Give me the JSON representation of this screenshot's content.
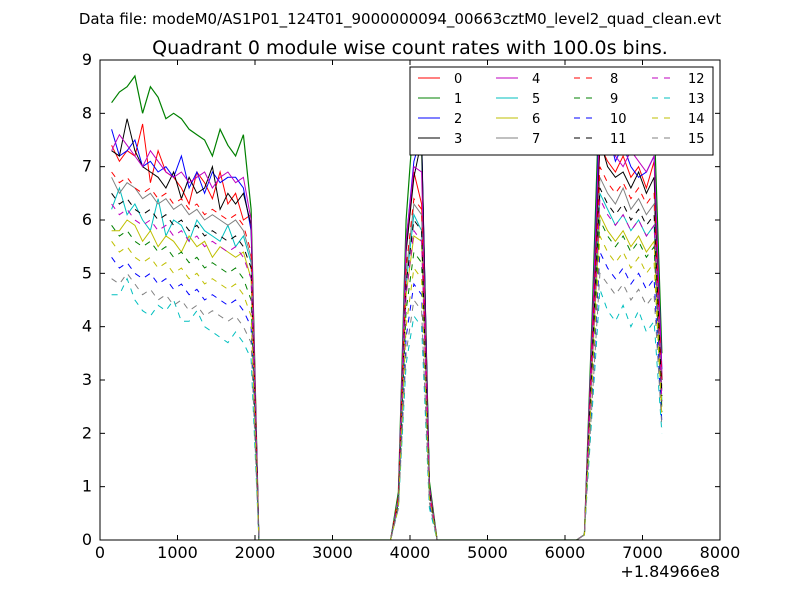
{
  "chart_data": {
    "type": "line",
    "suptitle": "Data file: modeM0/AS1P01_124T01_9000000094_00663cztM0_level2_quad_clean.evt",
    "title": "Quadrant 0 module wise count rates with 100.0s bins.",
    "xlabel": "",
    "ylabel": "",
    "x_offset_label": "+1.84966e8",
    "xlim": [
      0,
      8000
    ],
    "ylim": [
      0,
      9
    ],
    "x_ticks": [
      0,
      1000,
      2000,
      3000,
      4000,
      5000,
      6000,
      7000,
      8000
    ],
    "y_ticks": [
      0,
      1,
      2,
      3,
      4,
      5,
      6,
      7,
      8,
      9
    ],
    "x_tick_labels": [
      "0",
      "1000",
      "2000",
      "3000",
      "4000",
      "5000",
      "6000",
      "7000",
      "8000"
    ],
    "y_tick_labels": [
      "0",
      "1",
      "2",
      "3",
      "4",
      "5",
      "6",
      "7",
      "8",
      "9"
    ],
    "grid": false,
    "legend_position": "top-right",
    "legend_columns": 4,
    "x": [
      150,
      250,
      350,
      450,
      550,
      650,
      750,
      850,
      950,
      1050,
      1150,
      1250,
      1350,
      1450,
      1550,
      1650,
      1750,
      1850,
      1950,
      2050,
      2150,
      2250,
      2350,
      2450,
      2550,
      2650,
      2750,
      2850,
      2950,
      3050,
      3150,
      3250,
      3350,
      3450,
      3550,
      3650,
      3750,
      3850,
      3950,
      4050,
      4150,
      4250,
      4350,
      4450,
      4550,
      4650,
      4750,
      4850,
      4950,
      5050,
      5150,
      5250,
      5350,
      5450,
      5550,
      5650,
      5750,
      5850,
      5950,
      6050,
      6150,
      6250,
      6350,
      6450,
      6550,
      6650,
      6750,
      6850,
      6950,
      7050,
      7150,
      7250
    ],
    "series": [
      {
        "name": "0",
        "color": "#ff0000",
        "dash": "solid",
        "values": [
          7.4,
          7.1,
          7.3,
          7.2,
          7.8,
          6.7,
          7.3,
          6.9,
          6.8,
          6.6,
          6.3,
          6.9,
          6.7,
          6.4,
          6.9,
          6.3,
          6.5,
          6.0,
          6.1,
          0.0,
          0,
          0,
          0,
          0,
          0,
          0,
          0,
          0,
          0,
          0,
          0,
          0,
          0,
          0,
          0,
          0,
          0,
          0.8,
          5.5,
          6.9,
          6.3,
          1.0,
          0.0,
          0,
          0,
          0,
          0,
          0,
          0,
          0,
          0,
          0,
          0,
          0,
          0,
          0,
          0,
          0,
          0,
          0,
          0,
          0.1,
          3.8,
          7.4,
          7.1,
          6.9,
          7.2,
          6.8,
          7.0,
          6.6,
          7.1,
          3.0
        ]
      },
      {
        "name": "1",
        "color": "#008000",
        "dash": "solid",
        "values": [
          8.2,
          8.4,
          8.5,
          8.7,
          8.0,
          8.5,
          8.3,
          7.9,
          8.0,
          7.9,
          7.7,
          7.6,
          7.5,
          7.2,
          7.7,
          7.4,
          7.2,
          7.6,
          6.2,
          0.0,
          0,
          0,
          0,
          0,
          0,
          0,
          0,
          0,
          0,
          0,
          0,
          0,
          0,
          0,
          0,
          0,
          0,
          0.9,
          6.0,
          8.0,
          7.4,
          1.1,
          0.0,
          0,
          0,
          0,
          0,
          0,
          0,
          0,
          0,
          0,
          0,
          0,
          0,
          0,
          0,
          0,
          0,
          0,
          0,
          0.1,
          4.2,
          8.7,
          8.3,
          8.1,
          8.4,
          8.0,
          7.8,
          7.6,
          7.9,
          3.5
        ]
      },
      {
        "name": "2",
        "color": "#0000ff",
        "dash": "solid",
        "values": [
          7.7,
          7.2,
          7.3,
          7.5,
          7.0,
          7.1,
          6.9,
          7.0,
          6.8,
          7.2,
          6.6,
          6.9,
          6.5,
          6.9,
          6.7,
          6.8,
          6.8,
          6.6,
          5.8,
          0.0,
          0,
          0,
          0,
          0,
          0,
          0,
          0,
          0,
          0,
          0,
          0,
          0,
          0,
          0,
          0,
          0,
          0,
          0.8,
          5.6,
          7.1,
          7.6,
          1.0,
          0.0,
          0,
          0,
          0,
          0,
          0,
          0,
          0,
          0,
          0,
          0,
          0,
          0,
          0,
          0,
          0,
          0,
          0,
          0,
          0.1,
          3.9,
          8.2,
          7.7,
          7.1,
          7.4,
          7.0,
          6.8,
          6.9,
          7.2,
          3.2
        ]
      },
      {
        "name": "3",
        "color": "#000000",
        "dash": "solid",
        "values": [
          7.3,
          7.2,
          7.9,
          7.3,
          7.0,
          6.9,
          6.8,
          6.6,
          6.9,
          6.4,
          6.8,
          6.5,
          6.6,
          7.0,
          6.2,
          6.5,
          6.3,
          6.5,
          5.9,
          0.0,
          0,
          0,
          0,
          0,
          0,
          0,
          0,
          0,
          0,
          0,
          0,
          0,
          0,
          0,
          0,
          0,
          0,
          0.8,
          5.4,
          6.8,
          7.5,
          1.0,
          0.0,
          0,
          0,
          0,
          0,
          0,
          0,
          0,
          0,
          0,
          0,
          0,
          0,
          0,
          0,
          0,
          0,
          0,
          0,
          0.1,
          3.8,
          7.5,
          7.0,
          6.8,
          6.9,
          6.6,
          6.9,
          6.5,
          6.8,
          3.0
        ]
      },
      {
        "name": "4",
        "color": "#bf00bf",
        "dash": "solid",
        "values": [
          7.3,
          7.6,
          7.4,
          7.2,
          7.0,
          7.3,
          7.1,
          6.9,
          6.8,
          6.9,
          6.7,
          6.8,
          6.9,
          6.6,
          6.8,
          6.9,
          6.7,
          6.8,
          6.0,
          0.0,
          0,
          0,
          0,
          0,
          0,
          0,
          0,
          0,
          0,
          0,
          0,
          0,
          0,
          0,
          0,
          0,
          0,
          0.8,
          5.6,
          7.0,
          6.9,
          1.0,
          0.0,
          0,
          0,
          0,
          0,
          0,
          0,
          0,
          0,
          0,
          0,
          0,
          0,
          0,
          0,
          0,
          0,
          0,
          0,
          0.1,
          3.9,
          7.9,
          7.5,
          7.2,
          7.0,
          7.3,
          7.1,
          6.9,
          7.2,
          3.1
        ]
      },
      {
        "name": "5",
        "color": "#00bfbf",
        "dash": "solid",
        "values": [
          6.2,
          6.6,
          6.1,
          6.3,
          6.0,
          5.8,
          6.4,
          5.7,
          6.0,
          5.9,
          5.6,
          6.0,
          5.8,
          5.7,
          5.6,
          5.9,
          5.5,
          5.7,
          5.2,
          0.0,
          0,
          0,
          0,
          0,
          0,
          0,
          0,
          0,
          0,
          0,
          0,
          0,
          0,
          0,
          0,
          0,
          0,
          0.7,
          4.8,
          6.1,
          5.8,
          0.9,
          0.0,
          0,
          0,
          0,
          0,
          0,
          0,
          0,
          0,
          0,
          0,
          0,
          0,
          0,
          0,
          0,
          0,
          0,
          0,
          0.1,
          3.4,
          6.5,
          6.2,
          5.9,
          6.1,
          5.8,
          6.0,
          5.7,
          5.9,
          2.6
        ]
      },
      {
        "name": "6",
        "color": "#bfbf00",
        "dash": "solid",
        "values": [
          5.8,
          5.8,
          6.0,
          5.9,
          5.6,
          5.8,
          5.5,
          5.7,
          5.6,
          5.4,
          5.7,
          5.5,
          5.6,
          5.3,
          5.5,
          5.4,
          5.3,
          5.4,
          4.9,
          0.0,
          0,
          0,
          0,
          0,
          0,
          0,
          0,
          0,
          0,
          0,
          0,
          0,
          0,
          0,
          0,
          0,
          0,
          0.7,
          4.6,
          5.7,
          5.6,
          0.9,
          0.0,
          0,
          0,
          0,
          0,
          0,
          0,
          0,
          0,
          0,
          0,
          0,
          0,
          0,
          0,
          0,
          0,
          0,
          0,
          0.1,
          3.2,
          6.1,
          5.8,
          5.6,
          5.8,
          5.5,
          5.7,
          5.4,
          5.6,
          2.5
        ]
      },
      {
        "name": "7",
        "color": "#808080",
        "dash": "solid",
        "values": [
          6.8,
          6.5,
          6.7,
          6.6,
          6.4,
          6.5,
          6.3,
          6.4,
          6.2,
          6.3,
          6.1,
          6.2,
          6.0,
          6.1,
          6.0,
          5.9,
          6.0,
          5.8,
          5.3,
          0.0,
          0,
          0,
          0,
          0,
          0,
          0,
          0,
          0,
          0,
          0,
          0,
          0,
          0,
          0,
          0,
          0,
          0,
          0.8,
          5.0,
          6.3,
          6.1,
          0.9,
          0.0,
          0,
          0,
          0,
          0,
          0,
          0,
          0,
          0,
          0,
          0,
          0,
          0,
          0,
          0,
          0,
          0,
          0,
          0,
          0.1,
          3.5,
          6.8,
          6.5,
          6.3,
          6.6,
          6.2,
          6.4,
          6.1,
          6.3,
          2.8
        ]
      },
      {
        "name": "8",
        "color": "#ff0000",
        "dash": "dashed",
        "values": [
          6.9,
          6.7,
          6.8,
          6.6,
          6.5,
          6.6,
          6.4,
          6.5,
          6.3,
          6.4,
          6.2,
          6.3,
          6.1,
          6.2,
          6.1,
          6.0,
          6.1,
          5.9,
          5.4,
          0.0,
          0,
          0,
          0,
          0,
          0,
          0,
          0,
          0,
          0,
          0,
          0,
          0,
          0,
          0,
          0,
          0,
          0,
          0.8,
          5.1,
          6.4,
          6.2,
          0.9,
          0.0,
          0,
          0,
          0,
          0,
          0,
          0,
          0,
          0,
          0,
          0,
          0,
          0,
          0,
          0,
          0,
          0,
          0,
          0,
          0.1,
          3.6,
          7.0,
          6.7,
          6.5,
          6.7,
          6.4,
          6.6,
          6.3,
          6.5,
          2.9
        ]
      },
      {
        "name": "9",
        "color": "#008000",
        "dash": "dashed",
        "values": [
          5.9,
          5.7,
          5.8,
          5.6,
          5.5,
          5.6,
          5.4,
          5.5,
          5.3,
          5.4,
          5.2,
          5.3,
          5.1,
          5.2,
          5.1,
          5.0,
          5.1,
          4.9,
          4.5,
          0.0,
          0,
          0,
          0,
          0,
          0,
          0,
          0,
          0,
          0,
          0,
          0,
          0,
          0,
          0,
          0,
          0,
          0,
          0.7,
          4.3,
          5.4,
          5.2,
          0.8,
          0.0,
          0,
          0,
          0,
          0,
          0,
          0,
          0,
          0,
          0,
          0,
          0,
          0,
          0,
          0,
          0,
          0,
          0,
          0,
          0.1,
          3.0,
          6.0,
          5.7,
          5.5,
          5.7,
          5.4,
          5.6,
          5.3,
          5.5,
          2.4
        ]
      },
      {
        "name": "10",
        "color": "#0000ff",
        "dash": "dashed",
        "values": [
          5.3,
          5.1,
          5.2,
          5.0,
          4.9,
          5.0,
          4.8,
          4.9,
          4.7,
          4.8,
          4.6,
          4.7,
          4.5,
          4.6,
          4.5,
          4.4,
          4.5,
          4.3,
          4.0,
          0.0,
          0,
          0,
          0,
          0,
          0,
          0,
          0,
          0,
          0,
          0,
          0,
          0,
          0,
          0,
          0,
          0,
          0,
          0.6,
          3.8,
          4.8,
          4.6,
          0.7,
          0.0,
          0,
          0,
          0,
          0,
          0,
          0,
          0,
          0,
          0,
          0,
          0,
          0,
          0,
          0,
          0,
          0,
          0,
          0,
          0.1,
          2.7,
          5.4,
          5.1,
          4.9,
          5.1,
          4.8,
          5.0,
          4.7,
          4.9,
          2.2
        ]
      },
      {
        "name": "11",
        "color": "#000000",
        "dash": "dashed",
        "values": [
          6.5,
          6.3,
          6.4,
          6.2,
          6.1,
          6.2,
          6.0,
          6.1,
          5.9,
          6.0,
          5.8,
          5.9,
          5.7,
          5.8,
          5.7,
          5.6,
          5.7,
          5.5,
          5.1,
          0.0,
          0,
          0,
          0,
          0,
          0,
          0,
          0,
          0,
          0,
          0,
          0,
          0,
          0,
          0,
          0,
          0,
          0,
          0.7,
          4.8,
          6.0,
          5.8,
          0.9,
          0.0,
          0,
          0,
          0,
          0,
          0,
          0,
          0,
          0,
          0,
          0,
          0,
          0,
          0,
          0,
          0,
          0,
          0,
          0,
          0.1,
          3.4,
          6.6,
          6.3,
          6.1,
          6.3,
          6.0,
          6.2,
          5.9,
          6.1,
          2.7
        ]
      },
      {
        "name": "12",
        "color": "#bf00bf",
        "dash": "dashed",
        "values": [
          6.3,
          6.1,
          6.2,
          6.0,
          5.9,
          6.0,
          5.8,
          5.9,
          5.7,
          5.8,
          5.6,
          5.7,
          5.5,
          5.6,
          5.5,
          5.4,
          5.5,
          5.3,
          4.9,
          0.0,
          0,
          0,
          0,
          0,
          0,
          0,
          0,
          0,
          0,
          0,
          0,
          0,
          0,
          0,
          0,
          0,
          0,
          0.7,
          4.6,
          5.8,
          5.6,
          0.8,
          0.0,
          0,
          0,
          0,
          0,
          0,
          0,
          0,
          0,
          0,
          0,
          0,
          0,
          0,
          0,
          0,
          0,
          0,
          0,
          0.1,
          3.3,
          6.4,
          6.1,
          5.9,
          6.1,
          5.8,
          6.0,
          5.7,
          5.9,
          2.6
        ]
      },
      {
        "name": "13",
        "color": "#00bfbf",
        "dash": "dashed",
        "values": [
          4.6,
          4.6,
          4.9,
          4.5,
          4.3,
          4.2,
          4.4,
          4.3,
          4.5,
          4.1,
          4.1,
          4.3,
          4.0,
          3.9,
          3.8,
          3.7,
          3.9,
          3.7,
          3.4,
          0.0,
          0,
          0,
          0,
          0,
          0,
          0,
          0,
          0,
          0,
          0,
          0,
          0,
          0,
          0,
          0,
          0,
          0,
          0.6,
          3.3,
          4.2,
          4.0,
          0.6,
          0.0,
          0,
          0,
          0,
          0,
          0,
          0,
          0,
          0,
          0,
          0,
          0,
          0,
          0,
          0,
          0,
          0,
          0,
          0,
          0.1,
          2.4,
          4.7,
          4.3,
          4.1,
          4.4,
          4.0,
          4.3,
          3.9,
          4.1,
          2.0
        ]
      },
      {
        "name": "14",
        "color": "#bfbf00",
        "dash": "dashed",
        "values": [
          5.6,
          5.4,
          5.5,
          5.3,
          5.2,
          5.3,
          5.1,
          5.2,
          5.0,
          5.1,
          4.9,
          5.0,
          4.8,
          4.9,
          4.8,
          4.7,
          4.8,
          4.6,
          4.2,
          0.0,
          0,
          0,
          0,
          0,
          0,
          0,
          0,
          0,
          0,
          0,
          0,
          0,
          0,
          0,
          0,
          0,
          0,
          0.6,
          4.0,
          5.1,
          4.9,
          0.8,
          0.0,
          0,
          0,
          0,
          0,
          0,
          0,
          0,
          0,
          0,
          0,
          0,
          0,
          0,
          0,
          0,
          0,
          0,
          0,
          0.1,
          2.9,
          5.7,
          5.4,
          5.2,
          5.4,
          5.1,
          5.3,
          5.0,
          5.2,
          2.3
        ]
      },
      {
        "name": "15",
        "color": "#808080",
        "dash": "dashed",
        "values": [
          4.9,
          4.8,
          5.0,
          4.8,
          4.6,
          4.7,
          4.5,
          4.6,
          4.4,
          4.5,
          4.3,
          4.4,
          4.2,
          4.3,
          4.2,
          4.1,
          4.2,
          4.0,
          3.7,
          0.0,
          0,
          0,
          0,
          0,
          0,
          0,
          0,
          0,
          0,
          0,
          0,
          0,
          0,
          0,
          0,
          0,
          0,
          0.6,
          3.5,
          4.5,
          4.3,
          0.7,
          0.0,
          0,
          0,
          0,
          0,
          0,
          0,
          0,
          0,
          0,
          0,
          0,
          0,
          0,
          0,
          0,
          0,
          0,
          0,
          0.1,
          2.6,
          5.0,
          4.8,
          4.6,
          4.8,
          4.5,
          4.7,
          4.4,
          4.6,
          2.1
        ]
      }
    ]
  }
}
